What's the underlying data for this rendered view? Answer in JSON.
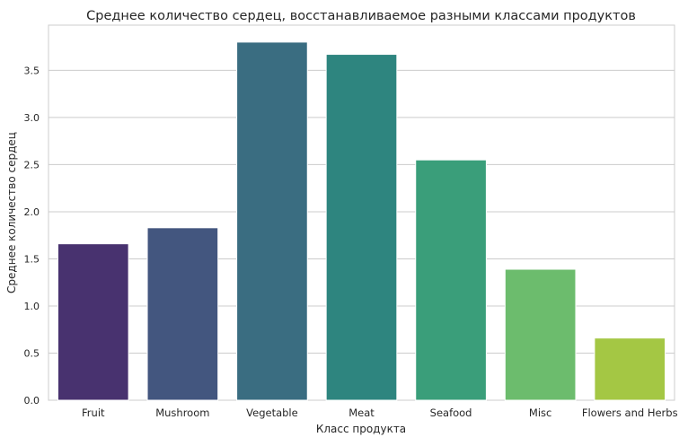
{
  "chart_data": {
    "type": "bar",
    "title": "Среднее количество сердец, восстанавливаемое разными классами продуктов",
    "xlabel": "Класс продукта",
    "ylabel": "Среднее количество сердец",
    "categories": [
      "Fruit",
      "Mushroom",
      "Vegetable",
      "Meat",
      "Seafood",
      "Misc",
      "Flowers and Herbs"
    ],
    "values": [
      1.66,
      1.83,
      3.8,
      3.67,
      2.55,
      1.39,
      0.66
    ],
    "colors": [
      "#48326f",
      "#43567f",
      "#3a6d81",
      "#2e857f",
      "#3a9e7a",
      "#6cbc6d",
      "#a4c744"
    ],
    "ylim": [
      0,
      3.98
    ],
    "yticks": [
      0.0,
      0.5,
      1.0,
      1.5,
      2.0,
      2.5,
      3.0,
      3.5
    ],
    "ytick_labels": [
      "0.0",
      "0.5",
      "1.0",
      "1.5",
      "2.0",
      "2.5",
      "3.0",
      "3.5"
    ],
    "grid": true,
    "grid_axis": "y",
    "style": "whitegrid"
  }
}
